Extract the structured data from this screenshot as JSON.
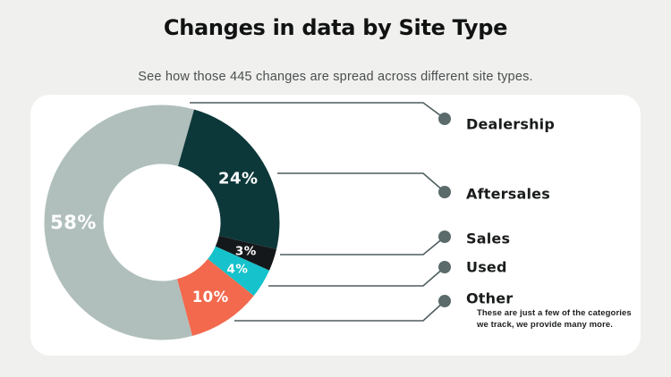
{
  "header": {
    "title": "Changes in data by Site Type",
    "subtitle": "See how those 445 changes are spread across different site types."
  },
  "chart_data": {
    "type": "pie",
    "donut": true,
    "title": "Changes in data by Site Type",
    "subtitle": "See how those 445 changes are spread across different site types.",
    "total_changes": 445,
    "categories": [
      "Dealership",
      "Aftersales",
      "Sales",
      "Used",
      "Other"
    ],
    "values": [
      58,
      24,
      3,
      4,
      10
    ],
    "value_suffix": "%",
    "colors": [
      "#b0bfbc",
      "#0d383a",
      "#15181a",
      "#16c2cb",
      "#f2694d"
    ],
    "start_angle_deg": 165,
    "legend_position": "right",
    "line_color": "#4e5c5e",
    "dot_color": "#5b6a6b",
    "note": "These are just a few of the categories we track, we provide many more."
  }
}
